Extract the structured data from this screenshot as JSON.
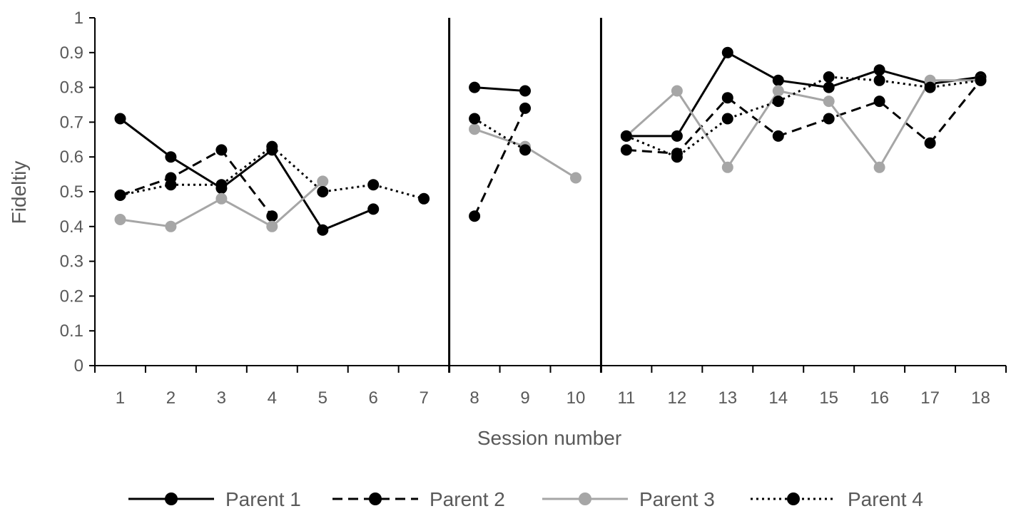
{
  "chart_data": {
    "type": "line",
    "title": "",
    "xlabel": "Session number",
    "ylabel": "Fideltiy",
    "categories": [
      "1",
      "2",
      "3",
      "4",
      "5",
      "6",
      "7",
      "8",
      "9",
      "10",
      "11",
      "12",
      "13",
      "14",
      "15",
      "16",
      "17",
      "18"
    ],
    "ylim": [
      0,
      1
    ],
    "yticks": [
      "0",
      "0.1",
      "0.2",
      "0.3",
      "0.4",
      "0.5",
      "0.6",
      "0.7",
      "0.8",
      "0.9",
      "1"
    ],
    "phase_lines_after_session": [
      7.5,
      10.5
    ],
    "legend_position": "bottom",
    "series": [
      {
        "name": "Parent 1",
        "color": "#000000",
        "dash": "solid",
        "segments": [
          [
            [
              1,
              0.71
            ],
            [
              2,
              0.6
            ],
            [
              3,
              0.51
            ],
            [
              4,
              0.62
            ],
            [
              5,
              0.39
            ],
            [
              6,
              0.45
            ]
          ],
          [
            [
              8,
              0.8
            ],
            [
              9,
              0.79
            ]
          ],
          [
            [
              11,
              0.66
            ],
            [
              12,
              0.66
            ],
            [
              13,
              0.9
            ],
            [
              14,
              0.82
            ],
            [
              15,
              0.8
            ],
            [
              16,
              0.85
            ],
            [
              17,
              0.81
            ],
            [
              18,
              0.83
            ]
          ]
        ]
      },
      {
        "name": "Parent 2",
        "color": "#000000",
        "dash": "dashed",
        "segments": [
          [
            [
              1,
              0.49
            ],
            [
              2,
              0.54
            ],
            [
              3,
              0.62
            ],
            [
              4,
              0.43
            ]
          ],
          [
            [
              8,
              0.43
            ],
            [
              9,
              0.74
            ]
          ],
          [
            [
              11,
              0.62
            ],
            [
              12,
              0.61
            ],
            [
              13,
              0.77
            ],
            [
              14,
              0.66
            ],
            [
              15,
              0.71
            ],
            [
              16,
              0.76
            ],
            [
              17,
              0.64
            ],
            [
              18,
              0.82
            ]
          ]
        ]
      },
      {
        "name": "Parent 3",
        "color": "#a6a6a6",
        "dash": "solid",
        "segments": [
          [
            [
              1,
              0.42
            ],
            [
              2,
              0.4
            ],
            [
              3,
              0.48
            ],
            [
              4,
              0.4
            ],
            [
              5,
              0.53
            ]
          ],
          [
            [
              8,
              0.68
            ],
            [
              9,
              0.63
            ],
            [
              10,
              0.54
            ]
          ],
          [
            [
              11,
              0.66
            ],
            [
              12,
              0.79
            ],
            [
              13,
              0.57
            ],
            [
              14,
              0.79
            ],
            [
              15,
              0.76
            ],
            [
              16,
              0.57
            ],
            [
              17,
              0.82
            ],
            [
              18,
              0.82
            ]
          ]
        ]
      },
      {
        "name": "Parent 4",
        "color": "#000000",
        "dash": "dotted",
        "segments": [
          [
            [
              1,
              0.49
            ],
            [
              2,
              0.52
            ],
            [
              3,
              0.52
            ],
            [
              4,
              0.63
            ],
            [
              5,
              0.5
            ],
            [
              6,
              0.52
            ],
            [
              7,
              0.48
            ]
          ],
          [
            [
              8,
              0.71
            ],
            [
              9,
              0.62
            ]
          ],
          [
            [
              11,
              0.66
            ],
            [
              12,
              0.6
            ],
            [
              13,
              0.71
            ],
            [
              14,
              0.76
            ],
            [
              15,
              0.83
            ],
            [
              16,
              0.82
            ],
            [
              17,
              0.8
            ],
            [
              18,
              0.82
            ]
          ]
        ]
      }
    ]
  }
}
